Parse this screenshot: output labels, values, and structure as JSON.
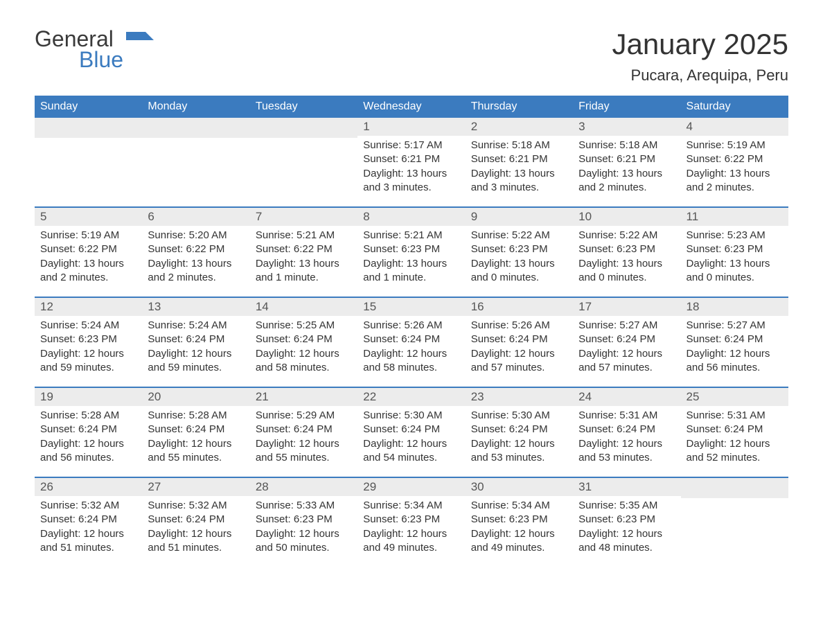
{
  "logo": {
    "word1": "General",
    "word2": "Blue"
  },
  "title": "January 2025",
  "location": "Pucara, Arequipa, Peru",
  "colors": {
    "header_bg": "#3b7bbf",
    "header_text": "#ffffff",
    "daynum_bg": "#ececec",
    "border": "#3b7bbf",
    "text": "#333333"
  },
  "weekdays": [
    "Sunday",
    "Monday",
    "Tuesday",
    "Wednesday",
    "Thursday",
    "Friday",
    "Saturday"
  ],
  "weeks": [
    [
      null,
      null,
      null,
      {
        "n": "1",
        "sr": "Sunrise: 5:17 AM",
        "ss": "Sunset: 6:21 PM",
        "d1": "Daylight: 13 hours",
        "d2": "and 3 minutes."
      },
      {
        "n": "2",
        "sr": "Sunrise: 5:18 AM",
        "ss": "Sunset: 6:21 PM",
        "d1": "Daylight: 13 hours",
        "d2": "and 3 minutes."
      },
      {
        "n": "3",
        "sr": "Sunrise: 5:18 AM",
        "ss": "Sunset: 6:21 PM",
        "d1": "Daylight: 13 hours",
        "d2": "and 2 minutes."
      },
      {
        "n": "4",
        "sr": "Sunrise: 5:19 AM",
        "ss": "Sunset: 6:22 PM",
        "d1": "Daylight: 13 hours",
        "d2": "and 2 minutes."
      }
    ],
    [
      {
        "n": "5",
        "sr": "Sunrise: 5:19 AM",
        "ss": "Sunset: 6:22 PM",
        "d1": "Daylight: 13 hours",
        "d2": "and 2 minutes."
      },
      {
        "n": "6",
        "sr": "Sunrise: 5:20 AM",
        "ss": "Sunset: 6:22 PM",
        "d1": "Daylight: 13 hours",
        "d2": "and 2 minutes."
      },
      {
        "n": "7",
        "sr": "Sunrise: 5:21 AM",
        "ss": "Sunset: 6:22 PM",
        "d1": "Daylight: 13 hours",
        "d2": "and 1 minute."
      },
      {
        "n": "8",
        "sr": "Sunrise: 5:21 AM",
        "ss": "Sunset: 6:23 PM",
        "d1": "Daylight: 13 hours",
        "d2": "and 1 minute."
      },
      {
        "n": "9",
        "sr": "Sunrise: 5:22 AM",
        "ss": "Sunset: 6:23 PM",
        "d1": "Daylight: 13 hours",
        "d2": "and 0 minutes."
      },
      {
        "n": "10",
        "sr": "Sunrise: 5:22 AM",
        "ss": "Sunset: 6:23 PM",
        "d1": "Daylight: 13 hours",
        "d2": "and 0 minutes."
      },
      {
        "n": "11",
        "sr": "Sunrise: 5:23 AM",
        "ss": "Sunset: 6:23 PM",
        "d1": "Daylight: 13 hours",
        "d2": "and 0 minutes."
      }
    ],
    [
      {
        "n": "12",
        "sr": "Sunrise: 5:24 AM",
        "ss": "Sunset: 6:23 PM",
        "d1": "Daylight: 12 hours",
        "d2": "and 59 minutes."
      },
      {
        "n": "13",
        "sr": "Sunrise: 5:24 AM",
        "ss": "Sunset: 6:24 PM",
        "d1": "Daylight: 12 hours",
        "d2": "and 59 minutes."
      },
      {
        "n": "14",
        "sr": "Sunrise: 5:25 AM",
        "ss": "Sunset: 6:24 PM",
        "d1": "Daylight: 12 hours",
        "d2": "and 58 minutes."
      },
      {
        "n": "15",
        "sr": "Sunrise: 5:26 AM",
        "ss": "Sunset: 6:24 PM",
        "d1": "Daylight: 12 hours",
        "d2": "and 58 minutes."
      },
      {
        "n": "16",
        "sr": "Sunrise: 5:26 AM",
        "ss": "Sunset: 6:24 PM",
        "d1": "Daylight: 12 hours",
        "d2": "and 57 minutes."
      },
      {
        "n": "17",
        "sr": "Sunrise: 5:27 AM",
        "ss": "Sunset: 6:24 PM",
        "d1": "Daylight: 12 hours",
        "d2": "and 57 minutes."
      },
      {
        "n": "18",
        "sr": "Sunrise: 5:27 AM",
        "ss": "Sunset: 6:24 PM",
        "d1": "Daylight: 12 hours",
        "d2": "and 56 minutes."
      }
    ],
    [
      {
        "n": "19",
        "sr": "Sunrise: 5:28 AM",
        "ss": "Sunset: 6:24 PM",
        "d1": "Daylight: 12 hours",
        "d2": "and 56 minutes."
      },
      {
        "n": "20",
        "sr": "Sunrise: 5:28 AM",
        "ss": "Sunset: 6:24 PM",
        "d1": "Daylight: 12 hours",
        "d2": "and 55 minutes."
      },
      {
        "n": "21",
        "sr": "Sunrise: 5:29 AM",
        "ss": "Sunset: 6:24 PM",
        "d1": "Daylight: 12 hours",
        "d2": "and 55 minutes."
      },
      {
        "n": "22",
        "sr": "Sunrise: 5:30 AM",
        "ss": "Sunset: 6:24 PM",
        "d1": "Daylight: 12 hours",
        "d2": "and 54 minutes."
      },
      {
        "n": "23",
        "sr": "Sunrise: 5:30 AM",
        "ss": "Sunset: 6:24 PM",
        "d1": "Daylight: 12 hours",
        "d2": "and 53 minutes."
      },
      {
        "n": "24",
        "sr": "Sunrise: 5:31 AM",
        "ss": "Sunset: 6:24 PM",
        "d1": "Daylight: 12 hours",
        "d2": "and 53 minutes."
      },
      {
        "n": "25",
        "sr": "Sunrise: 5:31 AM",
        "ss": "Sunset: 6:24 PM",
        "d1": "Daylight: 12 hours",
        "d2": "and 52 minutes."
      }
    ],
    [
      {
        "n": "26",
        "sr": "Sunrise: 5:32 AM",
        "ss": "Sunset: 6:24 PM",
        "d1": "Daylight: 12 hours",
        "d2": "and 51 minutes."
      },
      {
        "n": "27",
        "sr": "Sunrise: 5:32 AM",
        "ss": "Sunset: 6:24 PM",
        "d1": "Daylight: 12 hours",
        "d2": "and 51 minutes."
      },
      {
        "n": "28",
        "sr": "Sunrise: 5:33 AM",
        "ss": "Sunset: 6:23 PM",
        "d1": "Daylight: 12 hours",
        "d2": "and 50 minutes."
      },
      {
        "n": "29",
        "sr": "Sunrise: 5:34 AM",
        "ss": "Sunset: 6:23 PM",
        "d1": "Daylight: 12 hours",
        "d2": "and 49 minutes."
      },
      {
        "n": "30",
        "sr": "Sunrise: 5:34 AM",
        "ss": "Sunset: 6:23 PM",
        "d1": "Daylight: 12 hours",
        "d2": "and 49 minutes."
      },
      {
        "n": "31",
        "sr": "Sunrise: 5:35 AM",
        "ss": "Sunset: 6:23 PM",
        "d1": "Daylight: 12 hours",
        "d2": "and 48 minutes."
      },
      null
    ]
  ]
}
